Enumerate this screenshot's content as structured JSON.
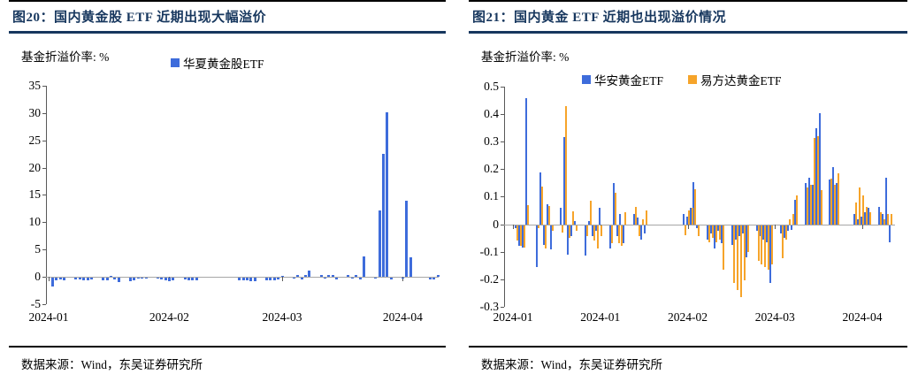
{
  "colors": {
    "bar_blue": "#3E6CDB",
    "bar_orange": "#F6A42A",
    "title_navy": "#17375E",
    "zero_line_gray": "#A6A6A6",
    "axis_gray": "#595959"
  },
  "chart_data": [
    {
      "type": "bar",
      "title": "图20：国内黄金股 ETF 近期出现大幅溢价",
      "ylabel": "基金折溢价率: %",
      "source": "数据来源：Wind，东吴证券研究所",
      "ylim": [
        -5,
        35
      ],
      "grid": false,
      "legend_position": "top",
      "yticks": [
        "35",
        "30",
        "25",
        "20",
        "15",
        "10",
        "5",
        "0",
        "-5"
      ],
      "xticks": [
        {
          "doy": 1,
          "label": "2024-01"
        },
        {
          "doy": 32,
          "label": "2024-02"
        },
        {
          "doy": 61,
          "label": "2024-03"
        },
        {
          "doy": 92,
          "label": "2024-04"
        }
      ],
      "legend": [
        {
          "name": "华夏黄金股ETF",
          "color": "#3E6CDB"
        }
      ],
      "series": [
        {
          "name": "华夏黄金股ETF",
          "color": "#3E6CDB",
          "points": [
            [
              "01-02",
              -1.7
            ],
            [
              "01-03",
              -0.45
            ],
            [
              "01-04",
              -0.4
            ],
            [
              "01-05",
              -0.45
            ],
            [
              "01-08",
              -0.4
            ],
            [
              "01-09",
              -0.35
            ],
            [
              "01-10",
              -0.5
            ],
            [
              "01-11",
              -0.45
            ],
            [
              "01-12",
              -0.3
            ],
            [
              "01-15",
              -0.55
            ],
            [
              "01-16",
              -0.5
            ],
            [
              "01-17",
              0.15
            ],
            [
              "01-18",
              -0.35
            ],
            [
              "01-19",
              -0.75
            ],
            [
              "01-22",
              -0.7
            ],
            [
              "01-23",
              -0.45
            ],
            [
              "01-24",
              -0.1
            ],
            [
              "01-25",
              -0.15
            ],
            [
              "01-26",
              -0.1
            ],
            [
              "01-29",
              -0.2
            ],
            [
              "01-30",
              -0.3
            ],
            [
              "01-31",
              -0.45
            ],
            [
              "02-01",
              -0.6
            ],
            [
              "02-02",
              -0.5
            ],
            [
              "02-05",
              -0.4
            ],
            [
              "02-06",
              -0.55
            ],
            [
              "02-07",
              -0.5
            ],
            [
              "02-08",
              -0.45
            ],
            [
              "02-19",
              -0.55
            ],
            [
              "02-20",
              -0.45
            ],
            [
              "02-21",
              -0.5
            ],
            [
              "02-22",
              -0.7
            ],
            [
              "02-23",
              -0.65
            ],
            [
              "02-26",
              -0.5
            ],
            [
              "02-27",
              -0.45
            ],
            [
              "02-28",
              -0.55
            ],
            [
              "02-29",
              -0.4
            ],
            [
              "03-01",
              0.2
            ],
            [
              "03-04",
              -0.2
            ],
            [
              "03-05",
              0.3
            ],
            [
              "03-06",
              -0.3
            ],
            [
              "03-07",
              0.25
            ],
            [
              "03-08",
              1.1
            ],
            [
              "03-11",
              0.35
            ],
            [
              "03-12",
              -0.2
            ],
            [
              "03-13",
              0.3
            ],
            [
              "03-14",
              0.25
            ],
            [
              "03-15",
              -0.25
            ],
            [
              "03-18",
              0.3
            ],
            [
              "03-19",
              -0.2
            ],
            [
              "03-20",
              0.25
            ],
            [
              "03-21",
              -0.35
            ],
            [
              "03-22",
              3.7
            ],
            [
              "03-25",
              -0.2
            ],
            [
              "03-26",
              12.2
            ],
            [
              "03-27",
              22.6
            ],
            [
              "03-28",
              30.1
            ],
            [
              "03-29",
              -0.3
            ],
            [
              "04-01",
              -0.2
            ],
            [
              "04-02",
              14.0
            ],
            [
              "04-03",
              3.5
            ],
            [
              "04-08",
              -0.3
            ],
            [
              "04-09",
              -0.25
            ],
            [
              "04-10",
              0.3
            ]
          ]
        }
      ]
    },
    {
      "type": "bar",
      "title": "图21：国内黄金 ETF 近期也出现溢价情况",
      "ylabel": "基金折溢价率: %",
      "source": "数据来源：Wind，东吴证券研究所",
      "ylim": [
        -0.3,
        0.5
      ],
      "grid": false,
      "legend_position": "top",
      "yticks": [
        "0.5",
        "0.4",
        "0.3",
        "0.2",
        "0.1",
        "0",
        "-0.1",
        "-0.2",
        "-0.3"
      ],
      "xticks": [
        {
          "doy": 1,
          "label": "2024-01"
        },
        {
          "doy": 26,
          "label": "2024-01"
        },
        {
          "doy": 51,
          "label": "2024-02"
        },
        {
          "doy": 76,
          "label": "2024-03"
        },
        {
          "doy": 101,
          "label": "2024-04"
        }
      ],
      "legend": [
        {
          "name": "华安黄金ETF",
          "color": "#3E6CDB"
        },
        {
          "name": "易方达黄金ETF",
          "color": "#F6A42A"
        }
      ],
      "series": [
        {
          "name": "华安黄金ETF",
          "color": "#3E6CDB",
          "points": [
            [
              "01-02",
              -0.01
            ],
            [
              "01-03",
              -0.075
            ],
            [
              "01-04",
              -0.08
            ],
            [
              "01-05",
              0.46
            ],
            [
              "01-08",
              -0.152
            ],
            [
              "01-09",
              0.19
            ],
            [
              "01-10",
              -0.07
            ],
            [
              "01-11",
              0.075
            ],
            [
              "01-12",
              -0.088
            ],
            [
              "01-15",
              0.06
            ],
            [
              "01-16",
              0.317
            ],
            [
              "01-17",
              -0.105
            ],
            [
              "01-18",
              -0.04
            ],
            [
              "01-19",
              0.012
            ],
            [
              "01-22",
              -0.11
            ],
            [
              "01-23",
              0.013
            ],
            [
              "01-24",
              -0.04
            ],
            [
              "01-25",
              -0.02
            ],
            [
              "01-26",
              0.06
            ],
            [
              "01-29",
              -0.085
            ],
            [
              "01-30",
              0.15
            ],
            [
              "01-31",
              -0.04
            ],
            [
              "02-01",
              0.04
            ],
            [
              "02-02",
              -0.065
            ],
            [
              "02-05",
              0.038
            ],
            [
              "02-06",
              0.025
            ],
            [
              "02-07",
              -0.05
            ],
            [
              "02-08",
              -0.03
            ],
            [
              "02-19",
              0.04
            ],
            [
              "02-20",
              0.03
            ],
            [
              "02-21",
              0.06
            ],
            [
              "02-22",
              0.153
            ],
            [
              "02-23",
              -0.01
            ],
            [
              "02-26",
              -0.05
            ],
            [
              "02-27",
              -0.03
            ],
            [
              "02-28",
              -0.085
            ],
            [
              "02-29",
              -0.02
            ],
            [
              "03-01",
              -0.065
            ],
            [
              "03-04",
              -0.07
            ],
            [
              "03-05",
              -0.05
            ],
            [
              "03-06",
              -0.04
            ],
            [
              "03-07",
              -0.03
            ],
            [
              "03-08",
              -0.115
            ],
            [
              "03-11",
              -0.02
            ],
            [
              "03-12",
              -0.04
            ],
            [
              "03-13",
              -0.05
            ],
            [
              "03-14",
              -0.06
            ],
            [
              "03-15",
              -0.21
            ],
            [
              "03-18",
              -0.03
            ],
            [
              "03-19",
              -0.045
            ],
            [
              "03-20",
              -0.02
            ],
            [
              "03-21",
              -0.015
            ],
            [
              "03-22",
              0.09
            ],
            [
              "03-25",
              0.15
            ],
            [
              "03-26",
              0.172
            ],
            [
              "03-27",
              0.145
            ],
            [
              "03-28",
              0.35
            ],
            [
              "03-29",
              0.405
            ],
            [
              "04-01",
              0.165
            ],
            [
              "04-02",
              0.21
            ],
            [
              "04-03",
              0.15
            ],
            [
              "04-08",
              0.04
            ],
            [
              "04-09",
              0.02
            ],
            [
              "04-10",
              0.03
            ],
            [
              "04-11",
              0.045
            ],
            [
              "04-12",
              0.06
            ],
            [
              "04-15",
              0.065
            ],
            [
              "04-16",
              0.04
            ],
            [
              "04-17",
              0.17
            ],
            [
              "04-18",
              -0.06
            ]
          ]
        },
        {
          "name": "易方达黄金ETF",
          "color": "#F6A42A",
          "points": [
            [
              "01-02",
              -0.055
            ],
            [
              "01-03",
              -0.075
            ],
            [
              "01-04",
              -0.08
            ],
            [
              "01-05",
              0.07
            ],
            [
              "01-08",
              -0.01
            ],
            [
              "01-09",
              0.138
            ],
            [
              "01-10",
              -0.085
            ],
            [
              "01-11",
              0.068
            ],
            [
              "01-12",
              -0.02
            ],
            [
              "01-15",
              -0.025
            ],
            [
              "01-16",
              0.43
            ],
            [
              "01-17",
              -0.045
            ],
            [
              "01-18",
              0.047
            ],
            [
              "01-19",
              -0.02
            ],
            [
              "01-22",
              -0.04
            ],
            [
              "01-23",
              0.088
            ],
            [
              "01-24",
              -0.055
            ],
            [
              "01-25",
              -0.085
            ],
            [
              "01-26",
              -0.04
            ],
            [
              "01-29",
              -0.065
            ],
            [
              "01-30",
              0.115
            ],
            [
              "01-31",
              -0.065
            ],
            [
              "02-01",
              -0.075
            ],
            [
              "02-02",
              0.045
            ],
            [
              "02-05",
              0.065
            ],
            [
              "02-06",
              -0.04
            ],
            [
              "02-07",
              0.02
            ],
            [
              "02-08",
              0.05
            ],
            [
              "02-19",
              -0.035
            ],
            [
              "02-20",
              0.05
            ],
            [
              "02-21",
              0.06
            ],
            [
              "02-22",
              0.13
            ],
            [
              "02-23",
              -0.04
            ],
            [
              "02-26",
              -0.06
            ],
            [
              "02-27",
              -0.045
            ],
            [
              "02-28",
              -0.06
            ],
            [
              "02-29",
              -0.05
            ],
            [
              "03-01",
              -0.16
            ],
            [
              "03-04",
              -0.21
            ],
            [
              "03-05",
              -0.235
            ],
            [
              "03-06",
              -0.26
            ],
            [
              "03-07",
              -0.2
            ],
            [
              "03-08",
              -0.095
            ],
            [
              "03-11",
              -0.13
            ],
            [
              "03-12",
              -0.14
            ],
            [
              "03-13",
              -0.15
            ],
            [
              "03-14",
              -0.16
            ],
            [
              "03-15",
              -0.14
            ],
            [
              "03-18",
              -0.12
            ],
            [
              "03-19",
              -0.05
            ],
            [
              "03-20",
              0.02
            ],
            [
              "03-21",
              0.04
            ],
            [
              "03-22",
              0.105
            ],
            [
              "03-25",
              0.135
            ],
            [
              "03-26",
              0.145
            ],
            [
              "03-27",
              0.315
            ],
            [
              "03-28",
              0.32
            ],
            [
              "03-29",
              0.125
            ],
            [
              "04-01",
              0.168
            ],
            [
              "04-02",
              0.145
            ],
            [
              "04-03",
              0.185
            ],
            [
              "04-08",
              0.08
            ],
            [
              "04-09",
              0.135
            ],
            [
              "04-10",
              0.105
            ],
            [
              "04-11",
              0.065
            ],
            [
              "04-12",
              0.045
            ],
            [
              "04-15",
              0.045
            ],
            [
              "04-16",
              0.02
            ],
            [
              "04-17",
              0.04
            ],
            [
              "04-18",
              0.04
            ]
          ]
        }
      ]
    }
  ]
}
